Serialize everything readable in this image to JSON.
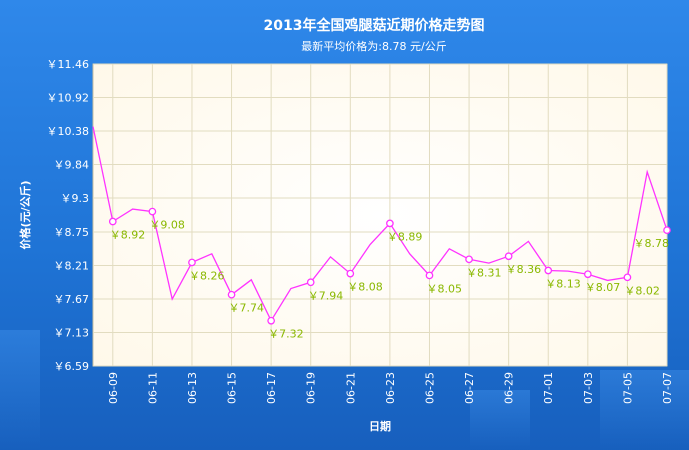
{
  "chart_data": {
    "type": "line",
    "title": "2013年全国鸡腿菇近期价格走势图",
    "subtitle": "最新平均价格为:8.78 元/公斤",
    "xlabel": "日期",
    "ylabel": "价格(元/公斤)",
    "ylim": [
      6.59,
      11.46
    ],
    "yticks": [
      "￥11.46",
      "￥10.92",
      "￥10.38",
      "￥9.84",
      "￥9.3",
      "￥8.75",
      "￥8.21",
      "￥7.67",
      "￥7.13",
      "￥6.59"
    ],
    "ytick_values": [
      11.46,
      10.92,
      10.38,
      9.84,
      9.3,
      8.75,
      8.21,
      7.67,
      7.13,
      6.59
    ],
    "xticks": [
      "06-09",
      "06-11",
      "06-13",
      "06-15",
      "06-17",
      "06-19",
      "06-21",
      "06-23",
      "06-25",
      "06-27",
      "06-29",
      "07-01",
      "07-03",
      "07-05",
      "07-07"
    ],
    "grid": true,
    "colors": {
      "line": "#ff33ff",
      "label": "#8ab800",
      "plot_bg": "#fffdf2",
      "grid": "#e2dcc0"
    },
    "series": [
      {
        "x": [
          "06-08",
          "06-09",
          "06-10",
          "06-11",
          "06-12",
          "06-13",
          "06-14",
          "06-15",
          "06-16",
          "06-17",
          "06-18",
          "06-19",
          "06-20",
          "06-21",
          "06-22",
          "06-23",
          "06-24",
          "06-25",
          "06-26",
          "06-27",
          "06-28",
          "06-29",
          "06-30",
          "07-01",
          "07-02",
          "07-03",
          "07-04",
          "07-05",
          "07-06",
          "07-07"
        ],
        "values": [
          10.45,
          8.92,
          9.12,
          9.08,
          7.67,
          8.26,
          8.4,
          7.74,
          7.98,
          7.32,
          7.84,
          7.94,
          8.35,
          8.08,
          8.55,
          8.89,
          8.4,
          8.05,
          8.48,
          8.31,
          8.25,
          8.36,
          8.6,
          8.13,
          8.12,
          8.07,
          7.97,
          8.02,
          9.72,
          8.78
        ]
      }
    ],
    "markers": [
      {
        "x": "06-09",
        "label": "￥8.92"
      },
      {
        "x": "06-11",
        "label": "￥9.08"
      },
      {
        "x": "06-13",
        "label": "￥8.26"
      },
      {
        "x": "06-15",
        "label": "￥7.74"
      },
      {
        "x": "06-17",
        "label": "￥7.32"
      },
      {
        "x": "06-19",
        "label": "￥7.94"
      },
      {
        "x": "06-21",
        "label": "￥8.08"
      },
      {
        "x": "06-23",
        "label": "￥8.89"
      },
      {
        "x": "06-25",
        "label": "￥8.05"
      },
      {
        "x": "06-27",
        "label": "￥8.31"
      },
      {
        "x": "06-29",
        "label": "￥8.36"
      },
      {
        "x": "07-01",
        "label": "￥8.13"
      },
      {
        "x": "07-03",
        "label": "￥8.07"
      },
      {
        "x": "07-05",
        "label": "￥8.02"
      },
      {
        "x": "07-07",
        "label": "￥8.78"
      }
    ]
  }
}
